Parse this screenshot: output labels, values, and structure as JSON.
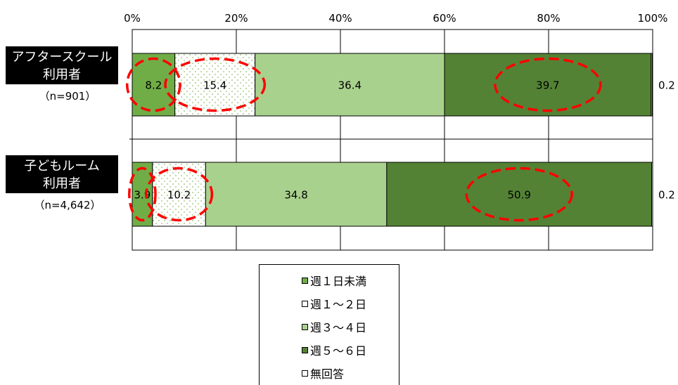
{
  "chart_data": {
    "type": "bar",
    "orientation": "horizontal",
    "stacked": true,
    "percent": true,
    "categories": [
      {
        "label_lines": [
          "アフタースクール",
          "利用者"
        ],
        "n": "（n=901）"
      },
      {
        "label_lines": [
          "子どもルーム",
          "利用者"
        ],
        "n": "（n=4,642）"
      }
    ],
    "series": [
      {
        "name": "週１日未満",
        "values": [
          8.2,
          3.9
        ],
        "color": "#70ad47",
        "pattern": "solid"
      },
      {
        "name": "週１～２日",
        "values": [
          15.4,
          10.2
        ],
        "color": "#ffffff",
        "pattern": "dots"
      },
      {
        "name": "週３～４日",
        "values": [
          36.4,
          34.8
        ],
        "color": "#a9d18e",
        "pattern": "solid"
      },
      {
        "name": "週５～６日",
        "values": [
          39.7,
          50.9
        ],
        "color": "#548235",
        "pattern": "solid"
      },
      {
        "name": "無回答",
        "values": [
          0.2,
          0.2
        ],
        "color": "#ffffff",
        "pattern": "solid"
      }
    ],
    "xlim": [
      0,
      100
    ],
    "xticks": [
      "0%",
      "20%",
      "40%",
      "60%",
      "80%",
      "100%"
    ],
    "highlight_circles": [
      {
        "category_index": 0,
        "series_index": 0
      },
      {
        "category_index": 0,
        "series_index": 1
      },
      {
        "category_index": 0,
        "series_index": 3
      },
      {
        "category_index": 1,
        "series_index": 0
      },
      {
        "category_index": 1,
        "series_index": 1
      },
      {
        "category_index": 1,
        "series_index": 3
      }
    ],
    "highlight_color": "#ff0000",
    "grid": true,
    "legend_position": "bottom-center"
  }
}
